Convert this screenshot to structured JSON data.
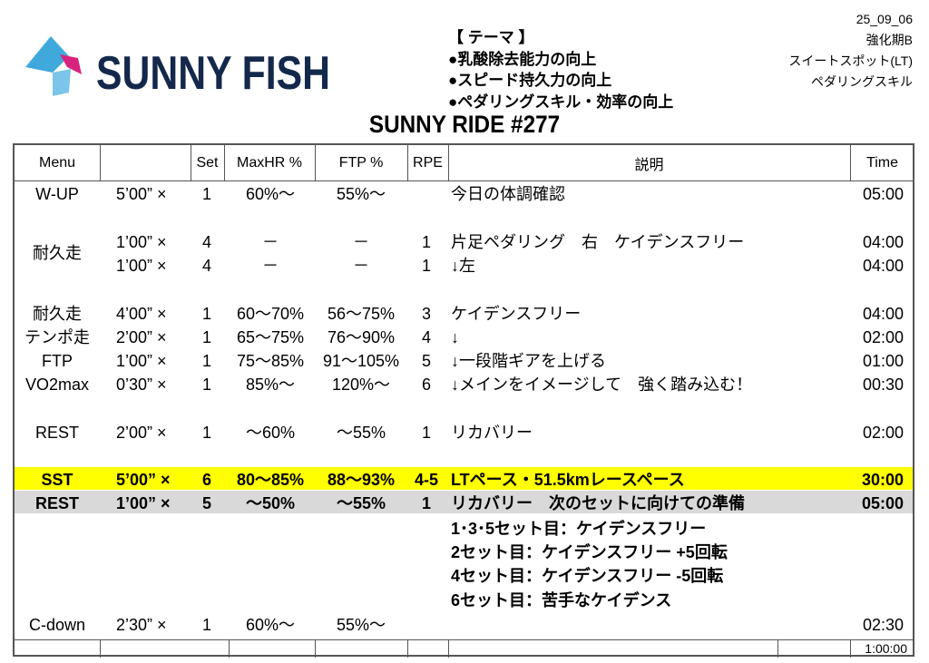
{
  "logo": {
    "text": "SUNNY FISH",
    "colors": {
      "navy": "#14284b",
      "blue": "#3fa9dc",
      "pink": "#d6247e"
    }
  },
  "theme": {
    "heading": "【 テーマ 】",
    "items": [
      "●乳酸除去能力の向上",
      "●スピード持久力の向上",
      "●ペダリングスキル・効率の向上"
    ]
  },
  "meta": [
    "25_09_06",
    "強化期B",
    "スイートスポット(LT)",
    "ペダリングスキル"
  ],
  "title": "SUNNY RIDE #277",
  "table": {
    "headers": {
      "menu": "Menu",
      "dur": "",
      "set": "Set",
      "hr": "MaxHR %",
      "ftp": "FTP %",
      "rpe": "RPE",
      "desc": "説明",
      "time": "Time"
    },
    "rows": [
      {
        "menu": "W-UP",
        "dur": "5’00” ×",
        "set": "1",
        "hr": "60%～",
        "ftp": "55%～",
        "rpe": "",
        "desc": "今日の体調確認",
        "time": "05:00"
      },
      {
        "menu": "",
        "dur": "1’00” ×",
        "set": "4",
        "hr": "－",
        "ftp": "－",
        "rpe": "1",
        "desc": "片足ペダリング　右　ケイデンスフリー",
        "time": "04:00"
      },
      {
        "menu": "",
        "dur": "1’00” ×",
        "set": "4",
        "hr": "－",
        "ftp": "－",
        "rpe": "1",
        "desc": "↓左",
        "time": "04:00"
      },
      {
        "menu": "耐久走",
        "dur": "4’00” ×",
        "set": "1",
        "hr": "60～70%",
        "ftp": "56～75%",
        "rpe": "3",
        "desc": "ケイデンスフリー",
        "time": "04:00"
      },
      {
        "menu": "テンポ走",
        "dur": "2’00” ×",
        "set": "1",
        "hr": "65～75%",
        "ftp": "76～90%",
        "rpe": "4",
        "desc": "↓",
        "time": "02:00"
      },
      {
        "menu": "FTP",
        "dur": "1’00” ×",
        "set": "1",
        "hr": "75～85%",
        "ftp": "91～105%",
        "rpe": "5",
        "desc": "↓一段階ギアを上げる",
        "time": "01:00"
      },
      {
        "menu": "VO2max",
        "dur": "0’30” ×",
        "set": "1",
        "hr": "85%～",
        "ftp": "120%～",
        "rpe": "6",
        "desc": "↓メインをイメージして　強く踏み込む！",
        "time": "00:30"
      },
      {
        "menu": "REST",
        "dur": "2’00” ×",
        "set": "1",
        "hr": "～60%",
        "ftp": "～55%",
        "rpe": "1",
        "desc": "リカバリー",
        "time": "02:00"
      },
      {
        "menu": "SST",
        "dur": "5’00” ×",
        "set": "6",
        "hr": "80～85%",
        "ftp": "88～93%",
        "rpe": "4-5",
        "desc": "LTペース・51.5kmレースペース",
        "time": "30:00",
        "highlight": "#ffff00"
      },
      {
        "menu": "REST",
        "dur": "1’00” ×",
        "set": "5",
        "hr": "～50%",
        "ftp": "～55%",
        "rpe": "1",
        "desc": "リカバリー　次のセットに向けての準備",
        "time": "05:00",
        "highlight": "#d9d9d9"
      },
      {
        "menu": "",
        "dur": "",
        "set": "",
        "hr": "",
        "ftp": "",
        "rpe": "",
        "desc": "1･3･5セット目：ケイデンスフリー",
        "time": "",
        "bold": true
      },
      {
        "menu": "",
        "dur": "",
        "set": "",
        "hr": "",
        "ftp": "",
        "rpe": "",
        "desc": "2セット目：ケイデンスフリー +5回転",
        "time": "",
        "bold": true
      },
      {
        "menu": "",
        "dur": "",
        "set": "",
        "hr": "",
        "ftp": "",
        "rpe": "",
        "desc": "4セット目：ケイデンスフリー -5回転",
        "time": "",
        "bold": true
      },
      {
        "menu": "",
        "dur": "",
        "set": "",
        "hr": "",
        "ftp": "",
        "rpe": "",
        "desc": "6セット目：苦手なケイデンス",
        "time": "",
        "bold": true
      },
      {
        "menu": "C-down",
        "dur": "2’30” ×",
        "set": "1",
        "hr": "60%～",
        "ftp": "55%～",
        "rpe": "",
        "desc": "",
        "time": "02:30"
      }
    ],
    "group_label": "耐久走",
    "total": "1:00:00"
  }
}
